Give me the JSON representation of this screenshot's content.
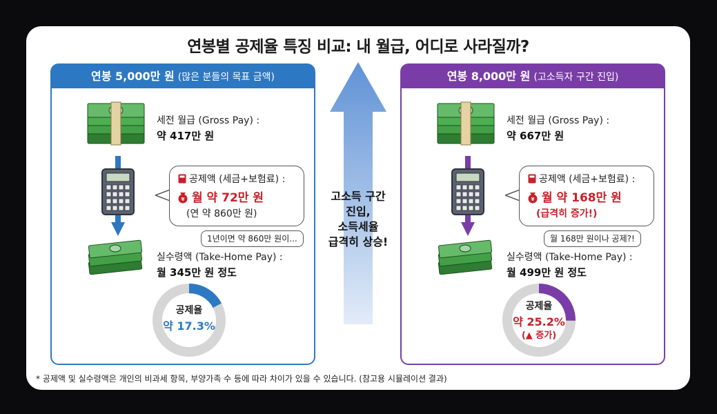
{
  "title": "연봉별 공제율 특징 비교: 내 월급, 어디로 사라질까?",
  "left_panel": {
    "header_main": "연봉 5,000만 원",
    "header_sub": "(많은 분들의 목표 금액)",
    "gross_label": "세전 월급 (Gross Pay) :",
    "gross_value": "약 417만 원",
    "deduction_label": "공제액 (세금+보험료) :",
    "deduction_value": "월 약 72만 원",
    "deduction_note": "(연 약 860만 원)",
    "callout": "1년이면 약 860만 원이...",
    "take_label": "실수령액 (Take-Home Pay) :",
    "take_value": "월 345만 원 정도",
    "rate_label": "공제율",
    "rate_value": "약 17.3%",
    "rate_fraction": 0.173,
    "accent": "#2d78c2"
  },
  "right_panel": {
    "header_main": "연봉 8,000만 원",
    "header_sub": "(고소득자 구간 진입)",
    "gross_label": "세전 월급 (Gross Pay) :",
    "gross_value": "약 667만 원",
    "deduction_label": "공제액 (세금+보험료) :",
    "deduction_value": "월 약 168만 원",
    "deduction_note": "(급격히 증가!)",
    "callout": "월 168만 원이나 공제?!",
    "take_label": "실수령액 (Take-Home Pay) :",
    "take_value": "월 499만 원 정도",
    "rate_label": "공제율",
    "rate_value": "약 25.2%",
    "rate_note": "(▲ 증가)",
    "rate_fraction": 0.252,
    "accent": "#7a3da8"
  },
  "center_text": [
    "고소득 구간",
    "진입,",
    "소득세율",
    "급격히 상승!"
  ],
  "footnote": "* 공제액 및 실수령액은 개인의 비과세 항목, 부양가족 수 등에 따라 차이가 있을 수 있습니다. (참고용 시뮬레이션 결과)",
  "colors": {
    "deduction_red": "#c9202a",
    "money_green": "#3d9a3f",
    "donut_gray": "#d6d6d6"
  }
}
